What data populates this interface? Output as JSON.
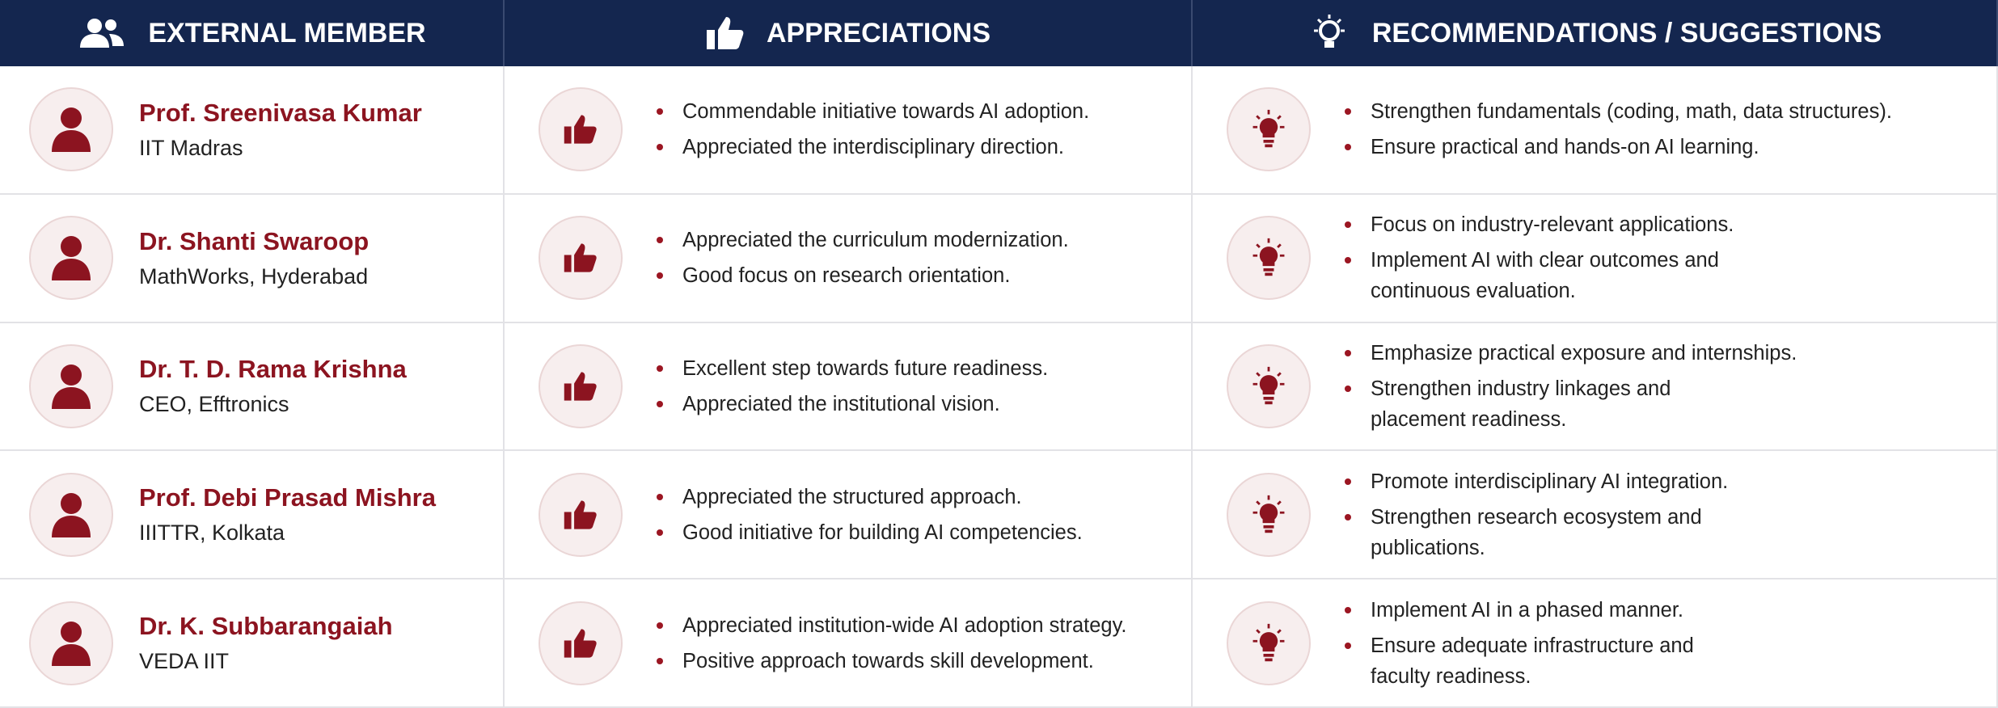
{
  "header": {
    "member": "EXTERNAL MEMBER",
    "appreciations": "APPRECIATIONS",
    "recommendations": "RECOMMENDATIONS / SUGGESTIONS"
  },
  "rows": [
    {
      "name": "Prof. Sreenivasa Kumar",
      "org": "IIT Madras",
      "appreciations": [
        "Commendable initiative towards AI adoption.",
        "Appreciated the interdisciplinary direction."
      ],
      "recommendations": [
        "Strengthen fundamentals (coding, math, data structures).",
        "Ensure practical and hands-on AI learning."
      ]
    },
    {
      "name": "Dr. Shanti Swaroop",
      "org": "MathWorks, Hyderabad",
      "appreciations": [
        "Appreciated the curriculum modernization.",
        "Good focus on research orientation."
      ],
      "recommendations": [
        "Focus on industry-relevant applications.",
        "Implement AI with clear outcomes and\ncontinuous evaluation."
      ]
    },
    {
      "name": "Dr. T. D. Rama Krishna",
      "org": "CEO, Efftronics",
      "appreciations": [
        "Excellent step towards future readiness.",
        "Appreciated the institutional vision."
      ],
      "recommendations": [
        "Emphasize practical exposure and internships.",
        "Strengthen industry linkages and\nplacement readiness."
      ]
    },
    {
      "name": "Prof. Debi Prasad Mishra",
      "org": "IIITTR, Kolkata",
      "appreciations": [
        "Appreciated the structured approach.",
        "Good initiative for building AI competencies."
      ],
      "recommendations": [
        "Promote interdisciplinary AI integration.",
        "Strengthen research ecosystem and\npublications."
      ]
    },
    {
      "name": "Dr. K. Subbarangaiah",
      "org": "VEDA IIT",
      "appreciations": [
        "Appreciated institution-wide AI adoption strategy.",
        "Positive approach towards skill development."
      ],
      "recommendations": [
        "Implement AI in a phased manner.",
        "Ensure adequate infrastructure and\nfaculty readiness."
      ]
    }
  ]
}
